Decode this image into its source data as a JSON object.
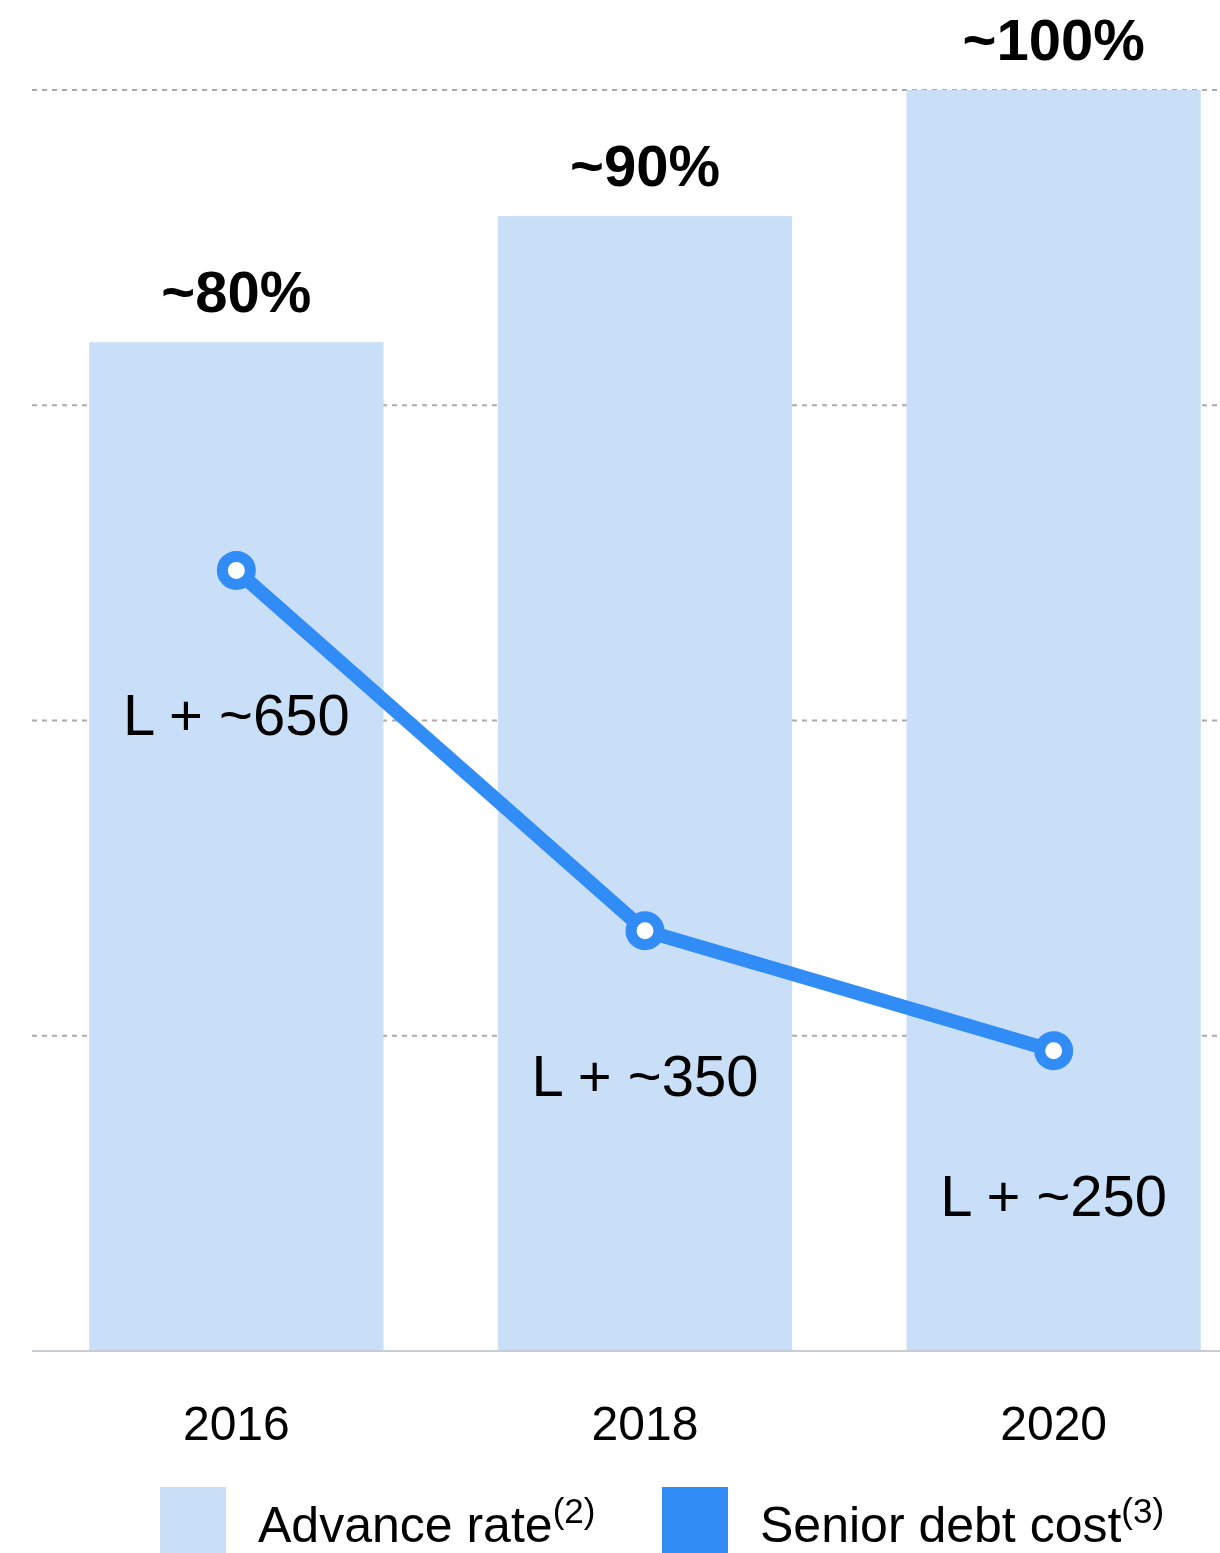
{
  "chart_data": {
    "type": "bar",
    "categories": [
      "2016",
      "2018",
      "2020"
    ],
    "series": [
      {
        "name": "Advance rate$^{(2)}$",
        "color": "#c9dff7",
        "values": [
          80,
          90,
          100
        ],
        "value_labels": [
          "~80%",
          "~90%",
          "~100%"
        ]
      },
      {
        "name": "Senior debt cost$^{(3)}$",
        "type": "line",
        "axis": "y2",
        "color": "#318cf6",
        "values": [
          650,
          350,
          250
        ],
        "value_labels": [
          "L + ~650",
          "L + ~350",
          "L + ~250"
        ]
      }
    ],
    "ylim": [
      0,
      100
    ],
    "yticks": [
      {
        "value": 25,
        "label": null
      },
      {
        "value": 50,
        "label": null
      },
      {
        "value": 75,
        "label": null
      },
      {
        "value": 100,
        "label": null
      }
    ],
    "y2lim": [
      0,
      1050
    ],
    "grid": "y",
    "tick_labels": "x",
    "legend": "bottom",
    "marker": "circle"
  }
}
